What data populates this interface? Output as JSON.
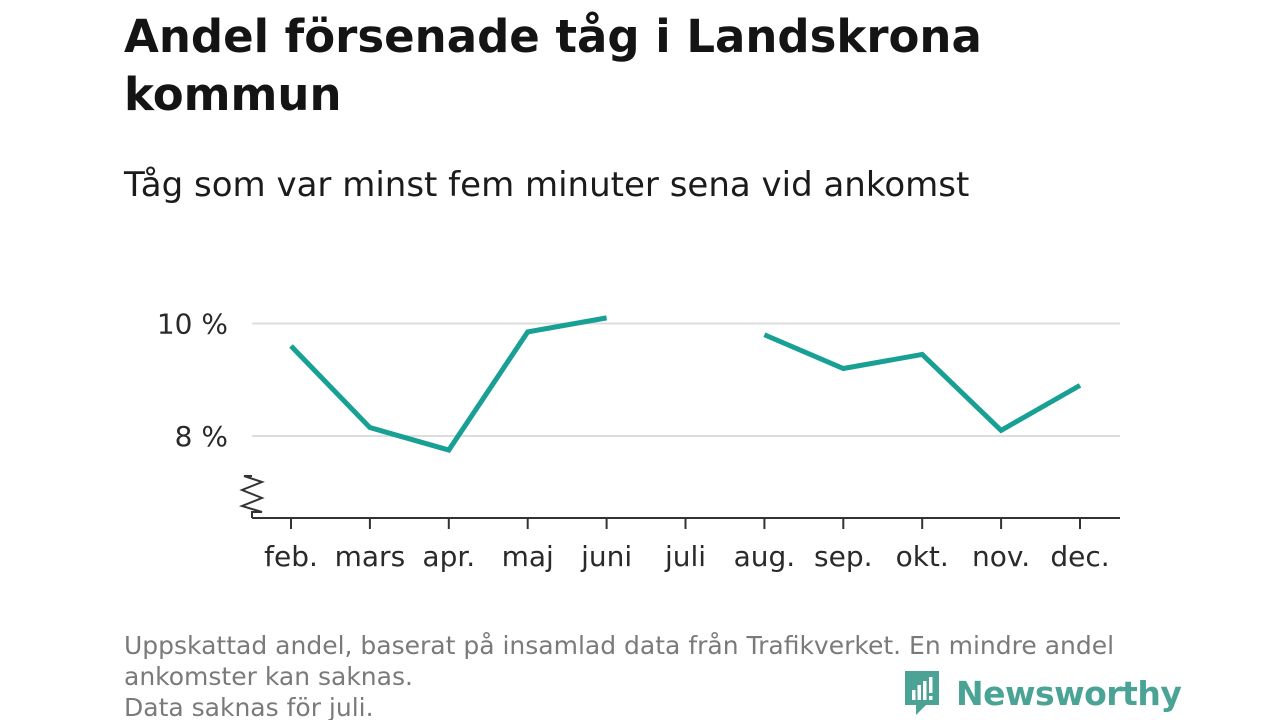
{
  "title": "Andel försenade tåg i Landskrona kommun",
  "subtitle": "Tåg som var minst fem minuter sena vid ankomst",
  "footer": {
    "line1": "Uppskattad andel, baserat på insamlad data från Trafikverket. En mindre andel",
    "line2": "ankomster kan saknas.",
    "line3": "Data saknas för juli."
  },
  "brand": {
    "name": "Newsworthy",
    "icon": "newsworthy-logo-icon",
    "color": "#4aa395"
  },
  "chart_data": {
    "type": "line",
    "categories": [
      "feb.",
      "mars",
      "apr.",
      "maj",
      "juni",
      "juli",
      "aug.",
      "sep.",
      "okt.",
      "nov.",
      "dec."
    ],
    "series": [
      {
        "values": [
          9.6,
          8.15,
          7.75,
          9.85,
          10.1,
          null,
          9.8,
          9.2,
          9.45,
          8.1,
          8.9
        ],
        "color": "#18a095"
      }
    ],
    "y_ticks": [
      {
        "value": 8,
        "label": "8 %"
      },
      {
        "value": 10,
        "label": "10 %"
      }
    ],
    "ylim": [
      6.6,
      10.6
    ],
    "axis_break": true,
    "grid": "horizontal",
    "gridline_color": "#dddddd",
    "legend": "none"
  }
}
